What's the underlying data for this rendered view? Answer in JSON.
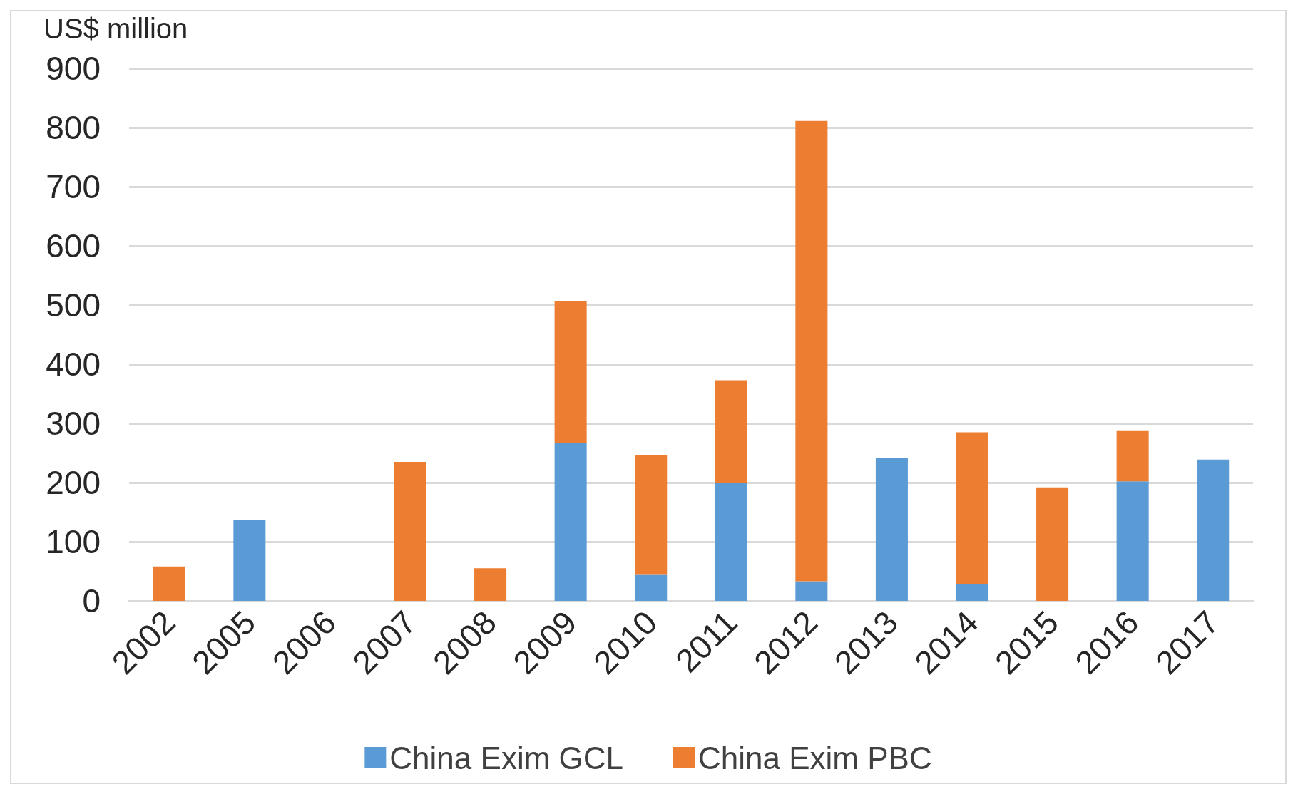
{
  "chart_data": {
    "type": "bar",
    "ylabel": "US$ million",
    "stacked": true,
    "categories": [
      "2002",
      "2005",
      "2006",
      "2007",
      "2008",
      "2009",
      "2010",
      "2011",
      "2012",
      "2013",
      "2014",
      "2015",
      "2016",
      "2017"
    ],
    "series": [
      {
        "name": "China Exim GCL",
        "color": "#5b9bd5",
        "values": [
          null,
          137,
          null,
          null,
          null,
          267,
          44,
          200,
          33,
          242,
          28,
          null,
          202,
          239
        ]
      },
      {
        "name": "China Exim PBC",
        "color": "#ed7d31",
        "values": [
          58,
          null,
          null,
          235,
          55,
          240,
          203,
          173,
          778,
          null,
          257,
          192,
          85,
          null
        ]
      }
    ],
    "ylim": [
      0,
      900
    ],
    "yticks": [
      0,
      100,
      200,
      300,
      400,
      500,
      600,
      700,
      800,
      900
    ],
    "grid": "y",
    "legend": "bottom"
  }
}
